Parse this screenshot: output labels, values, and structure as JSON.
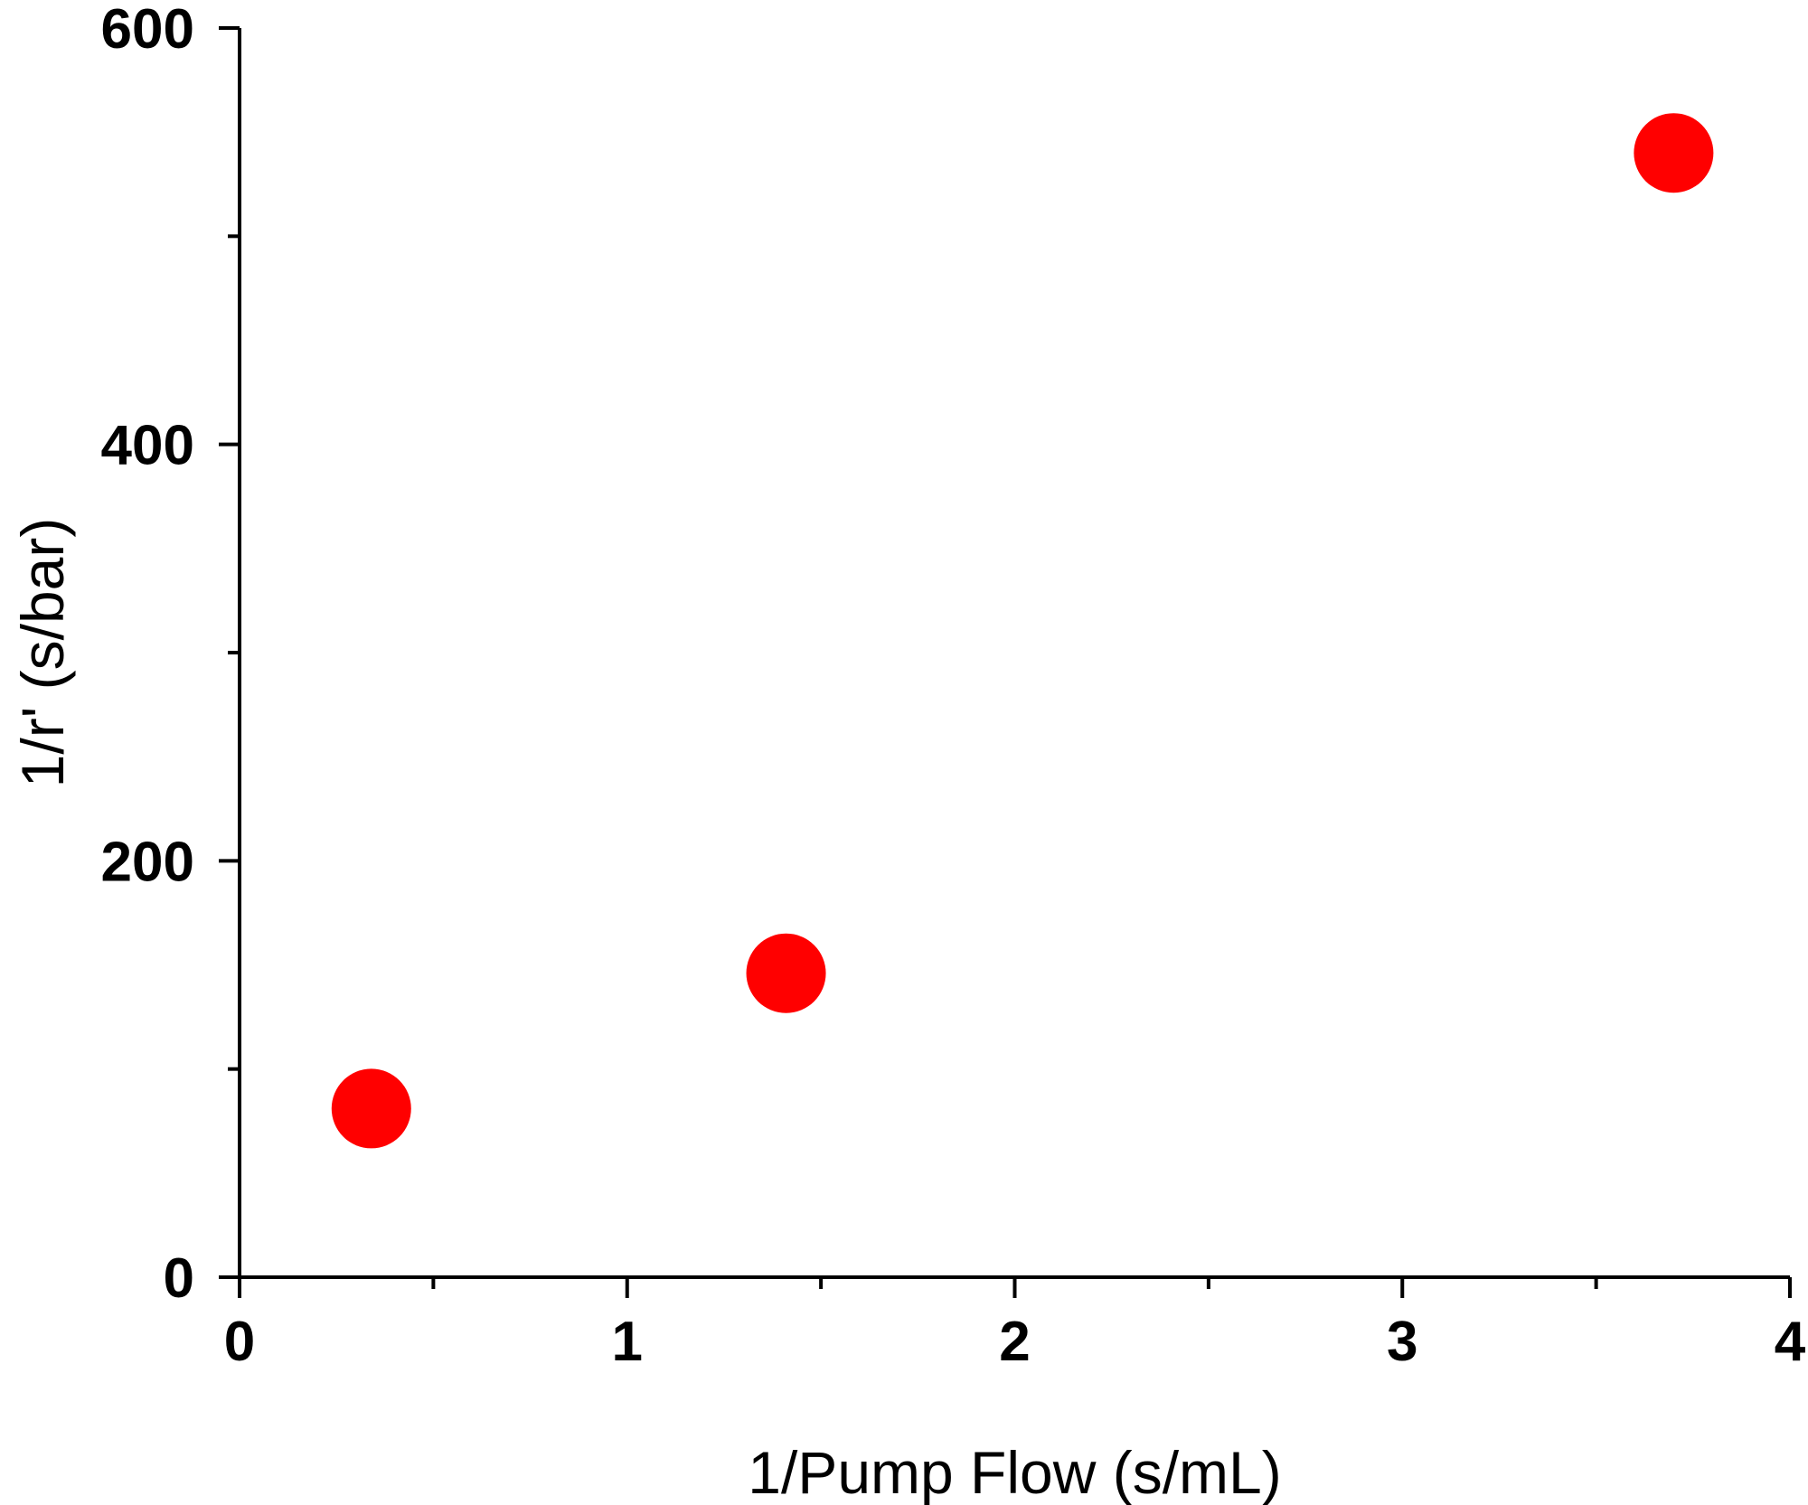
{
  "chart_data": {
    "type": "scatter",
    "title": "",
    "xlabel": "1/Pump Flow (s/mL)",
    "ylabel": "1/r' (s/bar)",
    "xlim": [
      0,
      4
    ],
    "ylim": [
      0,
      600
    ],
    "x_ticks": [
      0,
      1,
      2,
      3,
      4
    ],
    "x_minor_ticks": [
      0.5,
      1.5,
      2.5,
      3.5
    ],
    "y_ticks": [
      0,
      200,
      400,
      600
    ],
    "y_minor_ticks": [
      100,
      300,
      500
    ],
    "x_tick_labels": [
      "0",
      "1",
      "2",
      "3",
      "4"
    ],
    "y_tick_labels": [
      "0",
      "200",
      "400",
      "600"
    ],
    "grid": false,
    "legend": "none",
    "marker_color": "#ff0000",
    "series": [
      {
        "x": [
          0.34,
          1.41,
          3.7
        ],
        "y": [
          81,
          146,
          540
        ]
      }
    ]
  }
}
